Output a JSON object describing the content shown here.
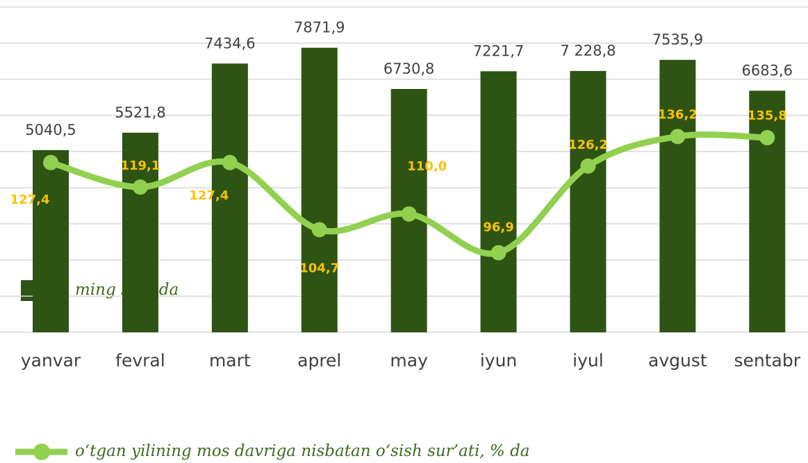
{
  "chart_data": {
    "type": "bar",
    "categories": [
      "yanvar",
      "fevral",
      "mart",
      "aprel",
      "may",
      "iyun",
      "iyul",
      "avgust",
      "sentabr"
    ],
    "series": [
      {
        "name": "ming so‘mda",
        "type": "bar",
        "color": "#2e5413",
        "values": [
          5040.5,
          5521.8,
          7434.6,
          7871.9,
          6730.8,
          7221.7,
          7228.8,
          7535.9,
          6683.6
        ],
        "value_labels": [
          "5040,5",
          "5521,8",
          "7434,6",
          "7871,9",
          "6730,8",
          "7221,7",
          "7 228,8",
          "7535,9",
          "6683,6"
        ]
      },
      {
        "name": "o‘tgan yilining mos davriga nisbatan o‘sish sur’ati, % da",
        "type": "line",
        "axis": "y2",
        "color": "#92d050",
        "label_color": "#ffc000",
        "values": [
          127.4,
          119.1,
          127.4,
          104.7,
          110.0,
          96.9,
          126.2,
          136.2,
          135.8
        ],
        "value_labels": [
          "127,4",
          "119,1",
          "127,4",
          "104,7",
          "110,0",
          "96,9",
          "126,2",
          "136,2",
          "135,8"
        ]
      }
    ],
    "ylim": [
      0,
      9000
    ],
    "yticks": [
      0,
      1000,
      2000,
      3000,
      4000,
      5000,
      6000,
      7000,
      8000,
      9000
    ],
    "y2lim": [
      70,
      180
    ],
    "grid": true
  }
}
